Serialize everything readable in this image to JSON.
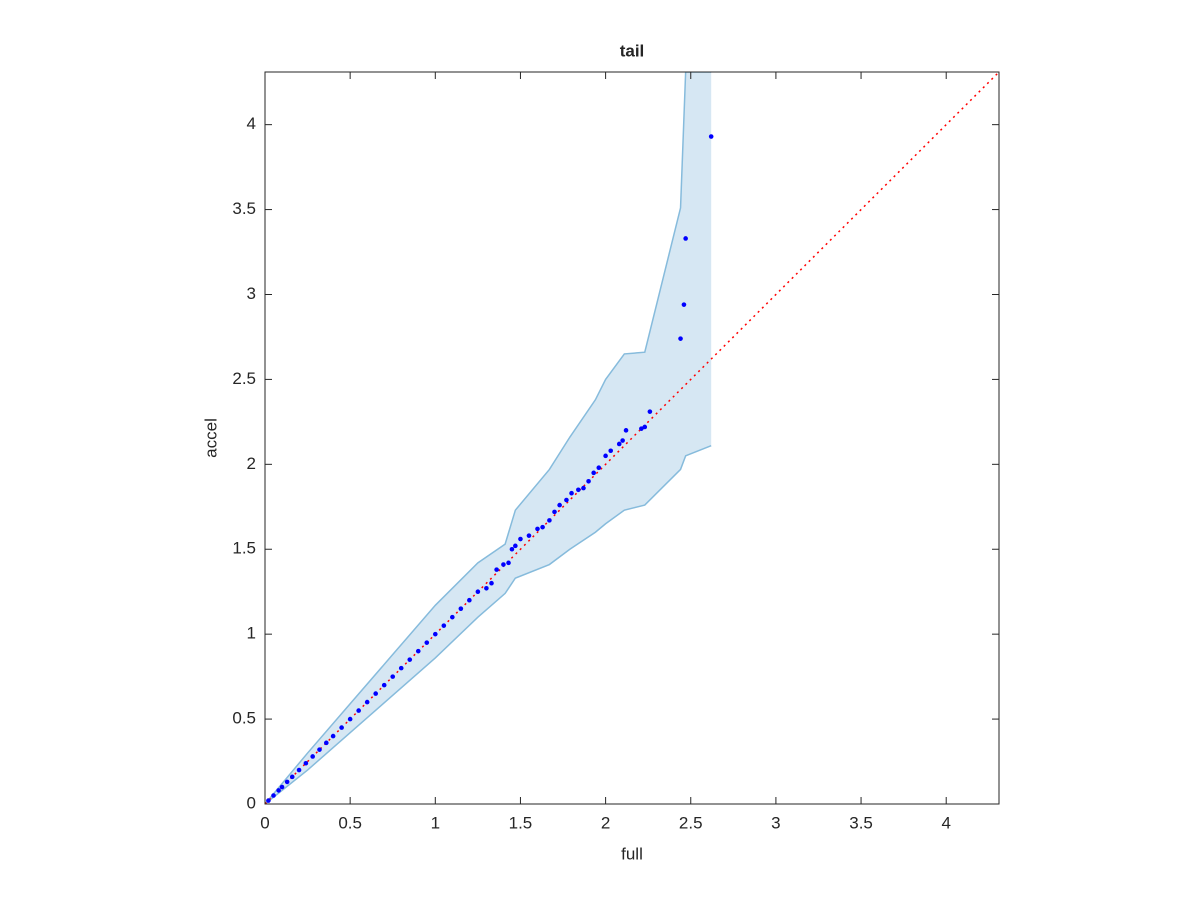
{
  "chart_data": {
    "type": "scatter",
    "title": "tail",
    "x_label": "full",
    "y_label": "accel",
    "xlim": [
      0,
      4.31
    ],
    "ylim": [
      0,
      4.31
    ],
    "xticks": [
      0,
      0.5,
      1,
      1.5,
      2,
      2.5,
      3,
      3.5,
      4
    ],
    "yticks": [
      0,
      0.5,
      1,
      1.5,
      2,
      2.5,
      3,
      3.5,
      4
    ],
    "color": "#0000ff",
    "x": [
      0.02,
      0.05,
      0.08,
      0.1,
      0.13,
      0.16,
      0.2,
      0.24,
      0.28,
      0.32,
      0.36,
      0.4,
      0.45,
      0.5,
      0.55,
      0.6,
      0.65,
      0.7,
      0.75,
      0.8,
      0.85,
      0.9,
      0.95,
      1.0,
      1.05,
      1.1,
      1.15,
      1.2,
      1.25,
      1.3,
      1.33,
      1.36,
      1.4,
      1.43,
      1.45,
      1.47,
      1.5,
      1.55,
      1.6,
      1.63,
      1.67,
      1.7,
      1.73,
      1.77,
      1.8,
      1.84,
      1.87,
      1.9,
      1.93,
      1.96,
      2.0,
      2.03,
      2.08,
      2.1,
      2.12,
      2.21,
      2.23,
      2.26,
      2.44,
      2.46,
      2.47,
      2.62
    ],
    "values": [
      0.02,
      0.05,
      0.08,
      0.1,
      0.13,
      0.16,
      0.2,
      0.24,
      0.28,
      0.32,
      0.36,
      0.4,
      0.45,
      0.5,
      0.55,
      0.6,
      0.65,
      0.7,
      0.75,
      0.8,
      0.85,
      0.9,
      0.95,
      1.0,
      1.05,
      1.1,
      1.15,
      1.2,
      1.25,
      1.27,
      1.3,
      1.38,
      1.41,
      1.42,
      1.5,
      1.52,
      1.56,
      1.58,
      1.62,
      1.63,
      1.67,
      1.72,
      1.76,
      1.79,
      1.83,
      1.85,
      1.86,
      1.9,
      1.95,
      1.98,
      2.05,
      2.08,
      2.12,
      2.14,
      2.2,
      2.21,
      2.22,
      2.31,
      2.74,
      2.94,
      3.33,
      3.93
    ],
    "band": {
      "fill": "#d6e7f3",
      "edge": "#86bbdc",
      "x": [
        0,
        0.25,
        0.5,
        0.75,
        1,
        1.25,
        1.41,
        1.47,
        1.67,
        1.79,
        1.94,
        2.0,
        2.11,
        2.23,
        2.44,
        2.47,
        2.62
      ],
      "upper": [
        0,
        0.3,
        0.59,
        0.88,
        1.17,
        1.42,
        1.53,
        1.73,
        1.97,
        2.16,
        2.38,
        2.5,
        2.65,
        2.66,
        3.51,
        4.31,
        4.31
      ],
      "lower": [
        0,
        0.2,
        0.42,
        0.64,
        0.86,
        1.1,
        1.24,
        1.33,
        1.41,
        1.5,
        1.6,
        1.65,
        1.73,
        1.76,
        1.97,
        2.05,
        2.11
      ]
    },
    "reference_line": {
      "color": "#ff0000",
      "x": [
        0,
        4.31
      ],
      "y": [
        0,
        4.31
      ]
    }
  }
}
